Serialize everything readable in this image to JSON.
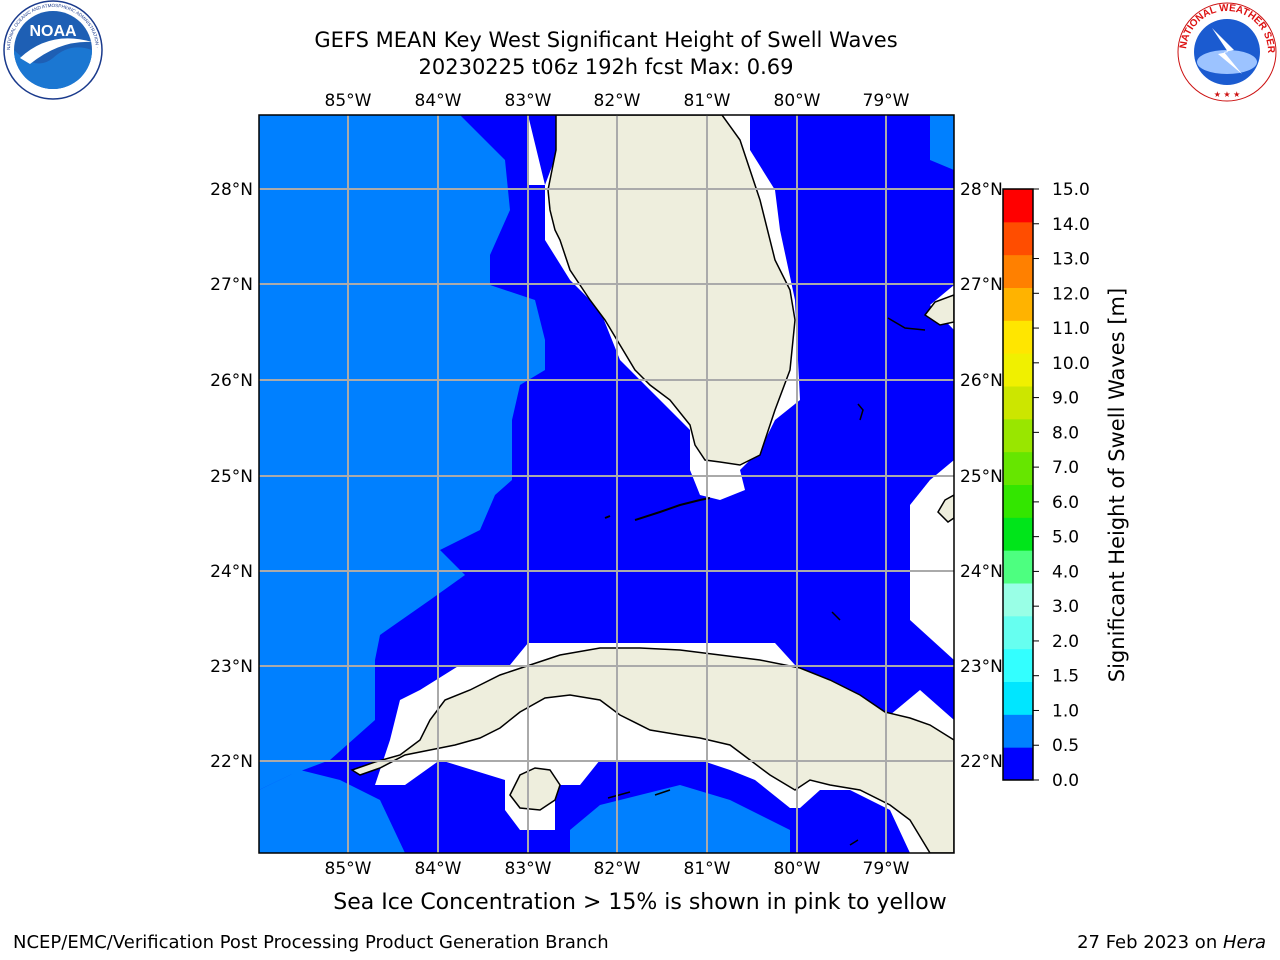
{
  "header": {
    "title": "GEFS MEAN Key West Significant Height of Swell Waves",
    "subtitle": "20230225 t06z 192h fcst   Max: 0.69"
  },
  "logos": {
    "left": {
      "text": "NOAA",
      "ring_text": "NATIONAL OCEANIC AND ATMOSPHERIC ADMINISTRATION · U.S. DEPARTMENT OF COMMERCE"
    },
    "right": {
      "ring_text": "NATIONAL WEATHER SERVICE"
    }
  },
  "map": {
    "lon_labels": [
      "85°W",
      "84°W",
      "83°W",
      "82°W",
      "81°W",
      "80°W",
      "79°W"
    ],
    "lat_labels": [
      "28°N",
      "27°N",
      "26°N",
      "25°N",
      "24°N",
      "23°N",
      "22°N"
    ],
    "colors": {
      "ocean_low": "#0000FF",
      "ocean_mid": "#0080FF",
      "land": "#EEEEDD",
      "missing": "#FFFFFF",
      "grid": "#AAAAAA"
    }
  },
  "colorbar": {
    "label": "Significant Height of Swell Waves [m]",
    "ticks": [
      "15.0",
      "14.0",
      "13.0",
      "12.0",
      "11.0",
      "10.0",
      "9.0",
      "8.0",
      "7.0",
      "6.0",
      "5.0",
      "4.0",
      "3.0",
      "2.0",
      "1.5",
      "1.0",
      "0.5",
      "0.0"
    ],
    "colors": [
      "#0000FF",
      "#0080FF",
      "#00E6FF",
      "#33FFFF",
      "#66FFF0",
      "#99FFE6",
      "#4DFF80",
      "#00E51A",
      "#33E600",
      "#66E600",
      "#99E600",
      "#CCE600",
      "#F0F000",
      "#FFE600",
      "#FFB300",
      "#FF8000",
      "#FF4D00",
      "#FF0000"
    ]
  },
  "caption": "Sea Ice Concentration > 15% is shown in pink to yellow",
  "footer": {
    "left": "NCEP/EMC/Verification Post Processing Product Generation Branch",
    "right_date": "27 Feb 2023 on ",
    "right_host": "Hera"
  }
}
